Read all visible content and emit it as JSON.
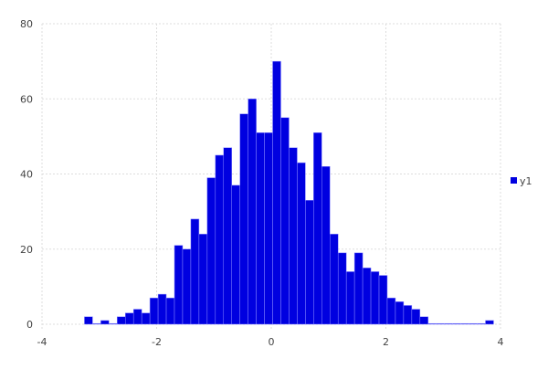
{
  "chart_data": {
    "type": "bar",
    "subtype": "histogram",
    "title": "",
    "xlabel": "",
    "ylabel": "",
    "xlim": [
      -4,
      4
    ],
    "ylim": [
      0,
      80
    ],
    "xticks": [
      "-4",
      "-2",
      "0",
      "2",
      "4"
    ],
    "yticks": [
      "0",
      "20",
      "40",
      "60",
      "80"
    ],
    "grid": true,
    "legend_position": "right",
    "bin_start": -3.26,
    "bin_width": 0.1428,
    "series": [
      {
        "name": "y1",
        "color": "#0000e0",
        "values": [
          2,
          0,
          1,
          0,
          2,
          3,
          4,
          3,
          7,
          8,
          7,
          21,
          20,
          28,
          24,
          39,
          45,
          47,
          37,
          56,
          60,
          51,
          51,
          70,
          55,
          47,
          43,
          33,
          51,
          42,
          24,
          19,
          14,
          19,
          15,
          14,
          13,
          7,
          6,
          5,
          4,
          2,
          0,
          0,
          0,
          0,
          0,
          0,
          0,
          1
        ]
      }
    ]
  }
}
